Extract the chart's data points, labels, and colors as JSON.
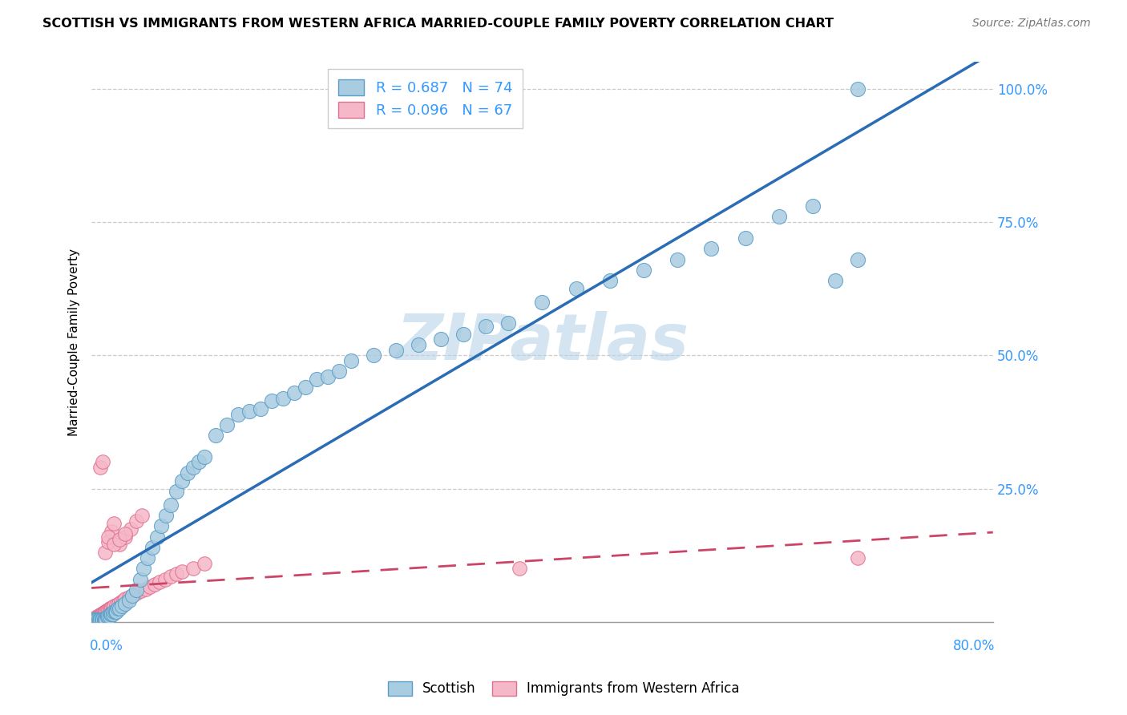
{
  "title": "SCOTTISH VS IMMIGRANTS FROM WESTERN AFRICA MARRIED-COUPLE FAMILY POVERTY CORRELATION CHART",
  "source": "Source: ZipAtlas.com",
  "ylabel": "Married-Couple Family Poverty",
  "xmin": 0.0,
  "xmax": 0.8,
  "ymin": 0.0,
  "ymax": 1.05,
  "scottish_face": "#a8cce0",
  "scottish_edge": "#5b9dc8",
  "wa_face": "#f5b8c8",
  "wa_edge": "#e07090",
  "line_scottish": "#2a6db5",
  "line_wa": "#cc4466",
  "R_scottish": 0.687,
  "N_scottish": 74,
  "R_wa": 0.096,
  "N_wa": 67,
  "watermark": "ZIPatlas",
  "ytick_vals": [
    0.0,
    0.25,
    0.5,
    0.75,
    1.0
  ],
  "ytick_labels": [
    "",
    "25.0%",
    "50.0%",
    "75.0%",
    "100.0%"
  ],
  "xtick_left": "0.0%",
  "xtick_right": "80.0%",
  "bottom_legend_labels": [
    "Scottish",
    "Immigrants from Western Africa"
  ],
  "scottish_x": [
    0.002,
    0.003,
    0.004,
    0.005,
    0.006,
    0.007,
    0.008,
    0.009,
    0.01,
    0.011,
    0.012,
    0.013,
    0.014,
    0.015,
    0.016,
    0.017,
    0.018,
    0.019,
    0.02,
    0.021,
    0.022,
    0.023,
    0.025,
    0.027,
    0.03,
    0.033,
    0.036,
    0.04,
    0.043,
    0.046,
    0.05,
    0.054,
    0.058,
    0.062,
    0.066,
    0.07,
    0.075,
    0.08,
    0.085,
    0.09,
    0.095,
    0.1,
    0.11,
    0.12,
    0.13,
    0.14,
    0.15,
    0.16,
    0.17,
    0.18,
    0.19,
    0.2,
    0.21,
    0.22,
    0.23,
    0.25,
    0.27,
    0.29,
    0.31,
    0.33,
    0.35,
    0.37,
    0.4,
    0.43,
    0.46,
    0.49,
    0.52,
    0.55,
    0.58,
    0.61,
    0.64,
    0.66,
    0.68,
    0.68
  ],
  "scottish_y": [
    0.005,
    0.005,
    0.005,
    0.005,
    0.005,
    0.005,
    0.005,
    0.005,
    0.005,
    0.005,
    0.005,
    0.005,
    0.01,
    0.01,
    0.01,
    0.015,
    0.015,
    0.015,
    0.02,
    0.02,
    0.02,
    0.025,
    0.025,
    0.03,
    0.035,
    0.04,
    0.05,
    0.06,
    0.08,
    0.1,
    0.12,
    0.14,
    0.16,
    0.18,
    0.2,
    0.22,
    0.245,
    0.265,
    0.28,
    0.29,
    0.3,
    0.31,
    0.35,
    0.37,
    0.39,
    0.395,
    0.4,
    0.415,
    0.42,
    0.43,
    0.44,
    0.455,
    0.46,
    0.47,
    0.49,
    0.5,
    0.51,
    0.52,
    0.53,
    0.54,
    0.555,
    0.56,
    0.6,
    0.625,
    0.64,
    0.66,
    0.68,
    0.7,
    0.72,
    0.76,
    0.78,
    0.64,
    1.0,
    0.68
  ],
  "wa_x": [
    0.001,
    0.002,
    0.002,
    0.003,
    0.003,
    0.004,
    0.004,
    0.005,
    0.005,
    0.006,
    0.006,
    0.007,
    0.007,
    0.008,
    0.008,
    0.009,
    0.009,
    0.01,
    0.01,
    0.011,
    0.011,
    0.012,
    0.012,
    0.013,
    0.014,
    0.015,
    0.016,
    0.017,
    0.018,
    0.019,
    0.02,
    0.022,
    0.024,
    0.026,
    0.028,
    0.03,
    0.033,
    0.036,
    0.04,
    0.044,
    0.048,
    0.052,
    0.056,
    0.06,
    0.065,
    0.07,
    0.075,
    0.08,
    0.09,
    0.1,
    0.012,
    0.015,
    0.018,
    0.02,
    0.025,
    0.03,
    0.035,
    0.04,
    0.045,
    0.38,
    0.68,
    0.008,
    0.01,
    0.015,
    0.02,
    0.025,
    0.03
  ],
  "wa_y": [
    0.003,
    0.003,
    0.005,
    0.005,
    0.007,
    0.007,
    0.008,
    0.008,
    0.01,
    0.01,
    0.01,
    0.012,
    0.012,
    0.013,
    0.013,
    0.015,
    0.015,
    0.015,
    0.017,
    0.017,
    0.018,
    0.018,
    0.02,
    0.02,
    0.022,
    0.022,
    0.025,
    0.025,
    0.027,
    0.027,
    0.03,
    0.032,
    0.035,
    0.037,
    0.04,
    0.043,
    0.046,
    0.05,
    0.054,
    0.058,
    0.062,
    0.066,
    0.07,
    0.075,
    0.08,
    0.085,
    0.09,
    0.095,
    0.1,
    0.11,
    0.13,
    0.15,
    0.17,
    0.185,
    0.145,
    0.16,
    0.175,
    0.19,
    0.2,
    0.1,
    0.12,
    0.29,
    0.3,
    0.16,
    0.145,
    0.155,
    0.165
  ]
}
